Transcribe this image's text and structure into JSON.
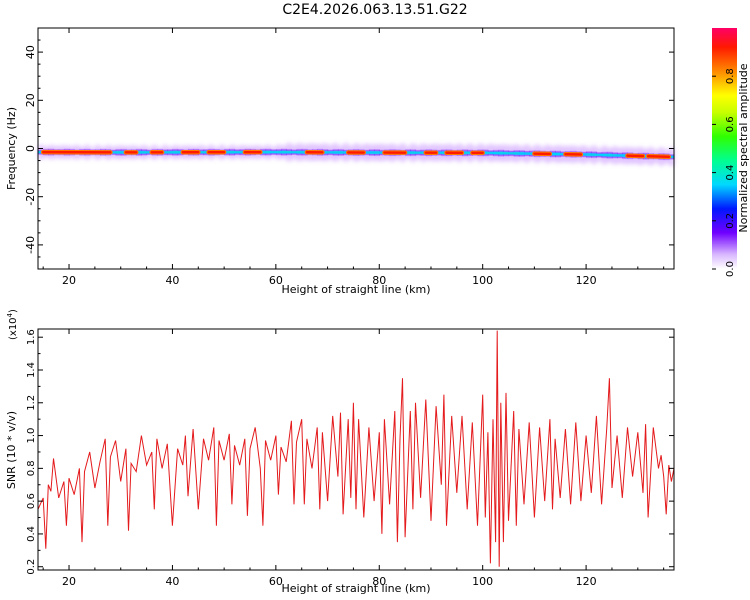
{
  "title": "C2E4.2026.063.13.51.G22",
  "chart_data": [
    {
      "type": "heatmap",
      "xlabel": "Height of straight line (km)",
      "ylabel": "Frequency (Hz)",
      "xlim": [
        14,
        137
      ],
      "ylim": [
        -50,
        50
      ],
      "xticks": [
        20,
        40,
        60,
        80,
        100,
        120
      ],
      "yticks": [
        -40,
        -20,
        0,
        20,
        40
      ],
      "colorbar": {
        "label": "Normalized spectral amplitude",
        "range": [
          0,
          1
        ],
        "ticks": [
          "0.0",
          "0.2",
          "0.4",
          "0.6",
          "0.8"
        ]
      },
      "ridge": {
        "x_start": 14,
        "x_end": 137,
        "center_freq_hz": [
          [
            14,
            -1.5
          ],
          [
            30,
            -1.6
          ],
          [
            60,
            -1.5
          ],
          [
            80,
            -1.7
          ],
          [
            100,
            -1.8
          ],
          [
            120,
            -2.5
          ],
          [
            137,
            -3.5
          ]
        ],
        "strong_bands_km": [
          [
            15,
            28
          ],
          [
            31,
            33
          ],
          [
            36,
            38
          ],
          [
            42,
            45
          ],
          [
            47,
            50
          ],
          [
            54,
            57
          ],
          [
            66,
            69
          ],
          [
            74,
            77
          ],
          [
            81,
            85
          ],
          [
            89,
            91
          ],
          [
            93,
            96
          ],
          [
            98,
            100
          ],
          [
            110,
            113
          ],
          [
            116,
            119
          ],
          [
            128,
            131
          ],
          [
            132,
            136
          ]
        ]
      }
    },
    {
      "type": "line",
      "xlabel": "Height of straight line (km)",
      "ylabel": "SNR (10 * v/v)",
      "y_scale_label": "(x10",
      "y_scale_exp": "4",
      "y_scale_close": ")",
      "xlim": [
        14,
        137
      ],
      "ylim": [
        0.18,
        1.65
      ],
      "xticks": [
        20,
        40,
        60,
        80,
        100,
        120
      ],
      "yticks": [
        "0.2",
        "0.4",
        "0.6",
        "0.8",
        "1.0",
        "1.2",
        "1.4",
        "1.6"
      ],
      "series": [
        {
          "color": "#e41a1c",
          "points": [
            [
              14.0,
              0.55
            ],
            [
              15.0,
              0.62
            ],
            [
              15.5,
              0.31
            ],
            [
              16.0,
              0.7
            ],
            [
              16.5,
              0.66
            ],
            [
              17.0,
              0.86
            ],
            [
              18.0,
              0.62
            ],
            [
              19.0,
              0.72
            ],
            [
              19.5,
              0.45
            ],
            [
              20.0,
              0.74
            ],
            [
              21.0,
              0.64
            ],
            [
              22.0,
              0.8
            ],
            [
              22.5,
              0.35
            ],
            [
              23.0,
              0.78
            ],
            [
              24.0,
              0.9
            ],
            [
              25.0,
              0.68
            ],
            [
              26.0,
              0.84
            ],
            [
              27.0,
              0.98
            ],
            [
              27.5,
              0.45
            ],
            [
              28.0,
              0.87
            ],
            [
              29.0,
              0.97
            ],
            [
              30.0,
              0.72
            ],
            [
              31.0,
              0.92
            ],
            [
              31.5,
              0.42
            ],
            [
              32.0,
              0.83
            ],
            [
              33.0,
              0.78
            ],
            [
              34.0,
              1.0
            ],
            [
              35.0,
              0.82
            ],
            [
              36.0,
              0.9
            ],
            [
              36.5,
              0.55
            ],
            [
              37.0,
              0.98
            ],
            [
              38.0,
              0.8
            ],
            [
              39.0,
              0.95
            ],
            [
              40.0,
              0.45
            ],
            [
              41.0,
              0.92
            ],
            [
              42.0,
              0.82
            ],
            [
              42.5,
              1.0
            ],
            [
              43.0,
              0.63
            ],
            [
              44.0,
              1.04
            ],
            [
              45.0,
              0.55
            ],
            [
              46.0,
              0.98
            ],
            [
              47.0,
              0.85
            ],
            [
              48.0,
              1.05
            ],
            [
              48.5,
              0.45
            ],
            [
              49.0,
              0.97
            ],
            [
              50.0,
              0.85
            ],
            [
              51.0,
              1.01
            ],
            [
              51.5,
              0.58
            ],
            [
              52.0,
              0.94
            ],
            [
              53.0,
              0.82
            ],
            [
              54.0,
              0.98
            ],
            [
              54.5,
              0.51
            ],
            [
              55.0,
              0.92
            ],
            [
              56.0,
              1.05
            ],
            [
              57.0,
              0.8
            ],
            [
              57.5,
              0.45
            ],
            [
              58.0,
              0.97
            ],
            [
              59.0,
              0.85
            ],
            [
              60.0,
              1.0
            ],
            [
              60.5,
              0.64
            ],
            [
              61.0,
              0.93
            ],
            [
              62.0,
              0.84
            ],
            [
              63.0,
              1.09
            ],
            [
              63.5,
              0.58
            ],
            [
              64.0,
              0.96
            ],
            [
              65.0,
              1.1
            ],
            [
              65.5,
              0.58
            ],
            [
              66.0,
              0.98
            ],
            [
              67.0,
              0.8
            ],
            [
              68.0,
              1.05
            ],
            [
              68.5,
              0.55
            ],
            [
              69.0,
              1.02
            ],
            [
              70.0,
              0.6
            ],
            [
              71.0,
              1.12
            ],
            [
              72.0,
              0.75
            ],
            [
              72.5,
              1.14
            ],
            [
              73.0,
              0.52
            ],
            [
              74.0,
              1.1
            ],
            [
              74.5,
              0.62
            ],
            [
              75.0,
              1.2
            ],
            [
              75.5,
              0.55
            ],
            [
              76.0,
              1.1
            ],
            [
              77.0,
              0.5
            ],
            [
              78.0,
              1.05
            ],
            [
              79.0,
              0.6
            ],
            [
              80.0,
              1.02
            ],
            [
              80.5,
              0.4
            ],
            [
              81.0,
              1.1
            ],
            [
              82.0,
              0.58
            ],
            [
              83.0,
              1.15
            ],
            [
              83.5,
              0.35
            ],
            [
              84.0,
              0.98
            ],
            [
              84.5,
              1.35
            ],
            [
              85.0,
              0.38
            ],
            [
              86.0,
              1.15
            ],
            [
              86.5,
              0.55
            ],
            [
              87.0,
              1.2
            ],
            [
              88.0,
              0.62
            ],
            [
              89.0,
              1.22
            ],
            [
              90.0,
              0.48
            ],
            [
              91.0,
              1.18
            ],
            [
              92.0,
              0.7
            ],
            [
              92.5,
              1.25
            ],
            [
              93.0,
              0.45
            ],
            [
              94.0,
              1.12
            ],
            [
              95.0,
              0.65
            ],
            [
              96.0,
              1.12
            ],
            [
              97.0,
              0.55
            ],
            [
              98.0,
              1.08
            ],
            [
              99.0,
              0.45
            ],
            [
              100.0,
              1.25
            ],
            [
              100.5,
              0.5
            ],
            [
              101.0,
              1.02
            ],
            [
              101.5,
              0.22
            ],
            [
              102.0,
              1.1
            ],
            [
              102.5,
              0.35
            ],
            [
              102.8,
              1.64
            ],
            [
              103.2,
              0.2
            ],
            [
              103.5,
              1.2
            ],
            [
              104.0,
              0.35
            ],
            [
              104.5,
              1.26
            ],
            [
              105.0,
              0.48
            ],
            [
              106.0,
              1.15
            ],
            [
              106.5,
              0.45
            ],
            [
              107.0,
              1.04
            ],
            [
              108.0,
              0.58
            ],
            [
              109.0,
              1.08
            ],
            [
              110.0,
              0.5
            ],
            [
              111.0,
              1.05
            ],
            [
              112.0,
              0.6
            ],
            [
              113.0,
              1.1
            ],
            [
              113.5,
              0.55
            ],
            [
              114.0,
              0.98
            ],
            [
              115.0,
              0.62
            ],
            [
              116.0,
              1.04
            ],
            [
              117.0,
              0.58
            ],
            [
              118.0,
              1.08
            ],
            [
              119.0,
              0.6
            ],
            [
              120.0,
              1.0
            ],
            [
              121.0,
              0.65
            ],
            [
              122.0,
              1.12
            ],
            [
              123.0,
              0.58
            ],
            [
              124.0,
              1.05
            ],
            [
              124.5,
              1.35
            ],
            [
              125.0,
              0.68
            ],
            [
              126.0,
              1.0
            ],
            [
              127.0,
              0.62
            ],
            [
              128.0,
              1.05
            ],
            [
              129.0,
              0.75
            ],
            [
              130.0,
              1.02
            ],
            [
              131.0,
              0.65
            ],
            [
              131.5,
              1.07
            ],
            [
              132.0,
              0.5
            ],
            [
              133.0,
              1.05
            ],
            [
              134.0,
              0.8
            ],
            [
              134.5,
              0.88
            ],
            [
              135.0,
              0.75
            ],
            [
              135.5,
              0.52
            ],
            [
              136.0,
              0.82
            ],
            [
              136.5,
              0.72
            ],
            [
              137.0,
              0.8
            ]
          ]
        }
      ]
    }
  ]
}
